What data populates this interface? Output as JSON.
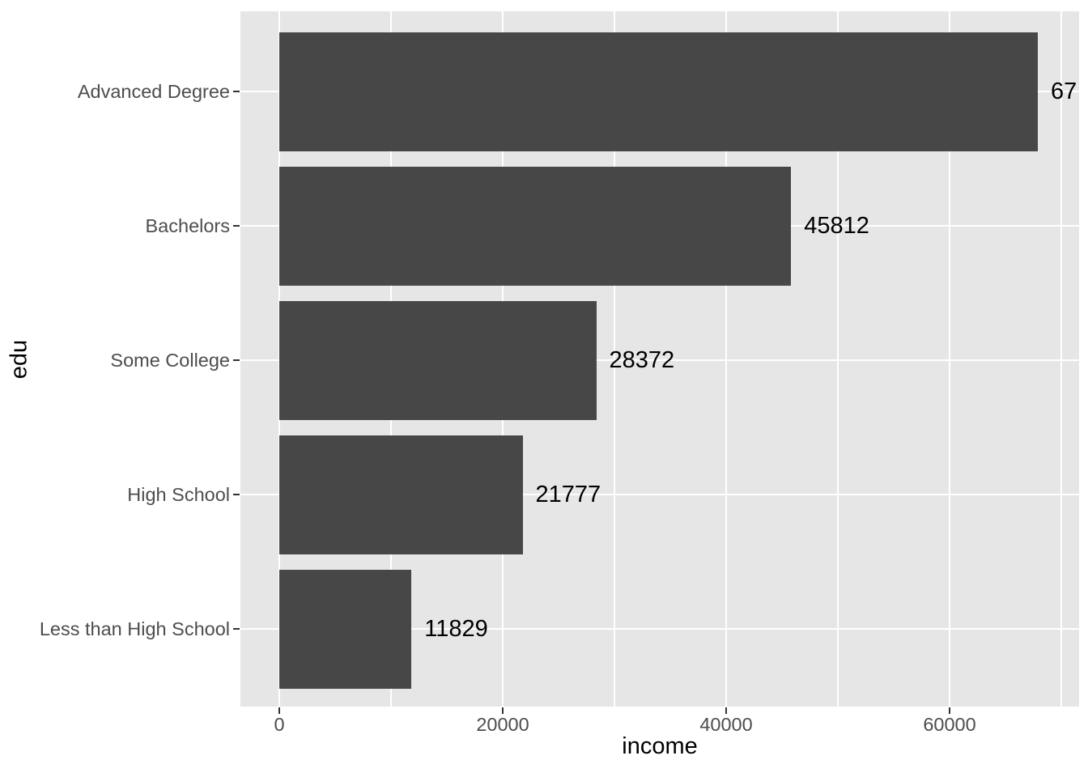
{
  "chart_data": {
    "type": "bar",
    "orientation": "horizontal",
    "title": "",
    "xlabel": "income",
    "ylabel": "edu",
    "categories": [
      "Advanced Degree",
      "Bachelors",
      "Some College",
      "High School",
      "Less than High School"
    ],
    "values": [
      67900,
      45812,
      28372,
      21777,
      11829
    ],
    "bar_labels": [
      "67",
      "45812",
      "28372",
      "21777",
      "11829"
    ],
    "bar_label_note_first_truncated_by_plot_edge": "67",
    "x_major_ticks": [
      0,
      20000,
      40000,
      60000
    ],
    "x_tick_labels": [
      "0",
      "20000",
      "40000",
      "60000"
    ],
    "x_minor_ticks": [
      10000,
      30000,
      50000,
      70000
    ],
    "xlim": [
      0,
      71500
    ],
    "grid": true,
    "legend": false,
    "colors": {
      "bar_fill": "#474747",
      "panel_background": "#e6e6e6",
      "gridline": "#ffffff",
      "axis_text": "#4d4d4d",
      "axis_title": "#000000",
      "bar_label_text": "#000000",
      "tick_mark": "#333333",
      "plot_background": "#ffffff"
    }
  }
}
